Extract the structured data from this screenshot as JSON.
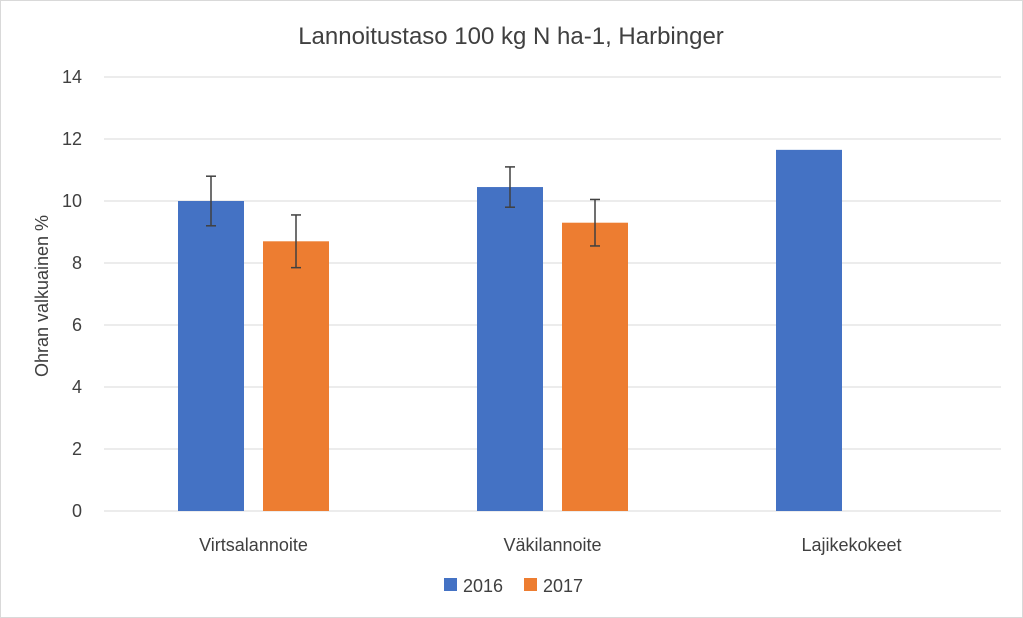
{
  "chart_data": {
    "type": "bar",
    "title": "Lannoitustaso 100 kg N ha-1, Harbinger",
    "xlabel": "",
    "ylabel": "Ohran valkuainen %",
    "ylim": [
      0,
      14
    ],
    "yticks": [
      0,
      2,
      4,
      6,
      8,
      10,
      12,
      14
    ],
    "grid": true,
    "legend_position": "bottom",
    "categories": [
      "Virtsalannoite",
      "Väkilannoite",
      "Lajikekokeet"
    ],
    "series": [
      {
        "name": "2016",
        "color": "#4472C4",
        "values": [
          10.0,
          10.45,
          11.65
        ],
        "error": [
          0.8,
          0.65,
          null
        ]
      },
      {
        "name": "2017",
        "color": "#ED7D31",
        "values": [
          8.7,
          9.3,
          null
        ],
        "error": [
          0.85,
          0.75,
          null
        ]
      }
    ]
  }
}
